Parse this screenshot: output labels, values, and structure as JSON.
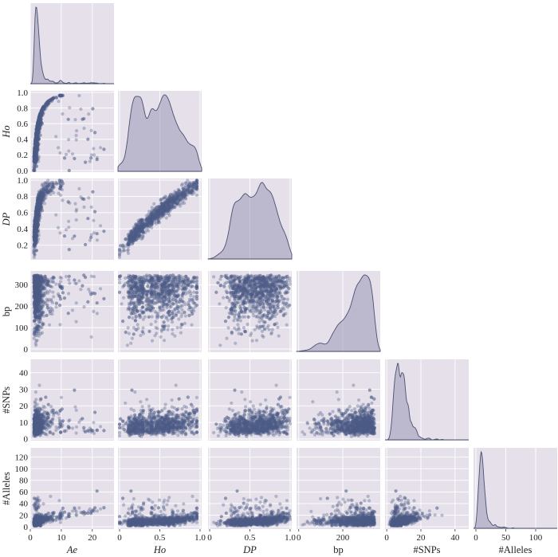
{
  "chart_data": {
    "type": "pairplot",
    "variables": [
      {
        "key": "Ae",
        "label": "Ae",
        "italic": true,
        "xlim": [
          0,
          27
        ],
        "ylim": [
          0,
          27
        ],
        "xticks": [
          0,
          10,
          20
        ],
        "yticks": [
          0,
          10,
          20
        ],
        "density_peak": 2.2,
        "skew": "right"
      },
      {
        "key": "Ho",
        "label": "Ho",
        "italic": true,
        "xlim": [
          -0.02,
          1.02
        ],
        "ylim": [
          -0.02,
          1.02
        ],
        "xticks": [
          0,
          0.5,
          1.0
        ],
        "xtick_labels": [
          "0",
          "0.5",
          "1.0"
        ],
        "yticks": [
          0,
          0.2,
          0.4,
          0.6,
          0.8,
          1.0
        ],
        "ytick_labels": [
          "0.0",
          "0.2",
          "0.4",
          "0.6",
          "0.8",
          "1.0"
        ]
      },
      {
        "key": "DP",
        "label": "DP",
        "italic": true,
        "xlim": [
          -0.02,
          1.02
        ],
        "ylim": [
          0.02,
          1.02
        ],
        "xticks": [
          0,
          0.5,
          1.0
        ],
        "xtick_labels": [
          "0",
          "0.5",
          "1.0"
        ],
        "yticks": [
          0.2,
          0.4,
          0.6,
          0.8,
          1.0
        ],
        "ytick_labels": [
          "0.2",
          "0.4",
          "0.6",
          "0.8",
          "1.0"
        ]
      },
      {
        "key": "bp",
        "label": "bp",
        "italic": false,
        "xlim": [
          -10,
          370
        ],
        "ylim": [
          -15,
          365
        ],
        "xticks": [
          0,
          200
        ],
        "yticks": [
          0,
          100,
          200,
          300
        ]
      },
      {
        "key": "SNPs",
        "label": "#SNPs",
        "italic": false,
        "xlim": [
          -1,
          48
        ],
        "ylim": [
          -1,
          48
        ],
        "xticks": [
          0,
          20,
          40
        ],
        "yticks": [
          0,
          10,
          20,
          30,
          40
        ]
      },
      {
        "key": "Alleles",
        "label": "#Alleles",
        "italic": false,
        "xlim": [
          -4,
          136
        ],
        "ylim": [
          -4,
          136
        ],
        "xticks": [
          0,
          50,
          100
        ],
        "yticks": [
          0,
          20,
          40,
          60,
          80,
          100,
          120
        ]
      }
    ],
    "diagonal": "kde",
    "offdiagonal": "scatter",
    "corner": true,
    "point_color": "#4c5c87",
    "fill_color": "#9a98b4",
    "panel_background": "#e5e0ea",
    "grid": true
  }
}
